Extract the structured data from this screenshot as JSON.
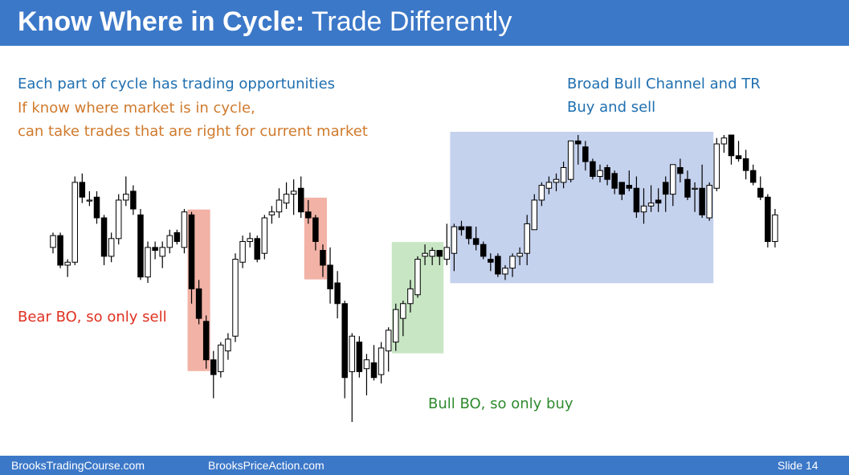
{
  "title": {
    "bold": "Know Where in Cycle:",
    "rest": "Trade Differently"
  },
  "intro": {
    "line1": "Each part of cycle has trading opportunities",
    "line2": "If know where market is in cycle,",
    "line3": "can take trades that are right for current market"
  },
  "annotations": {
    "channel_line1": "Broad Bull Channel and TR",
    "channel_line2": "Buy and sell",
    "bear": "Bear BO, so only sell",
    "bull": "Bull BO, so only buy"
  },
  "footer": {
    "left": "BrooksTradingCourse.com",
    "center": "BrooksPriceAction.com",
    "slide": "Slide  14"
  },
  "colors": {
    "header": "#3c78c8",
    "intro_blue": "#1f6fb0",
    "intro_orange": "#d07a2c",
    "bear_red": "#e03020",
    "bull_green": "#2e8a2e",
    "bear_zone": "#f2b2a6",
    "bull_zone": "#c8e6c4",
    "channel_zone": "#c5d2ee"
  },
  "chart_data": {
    "type": "candlestick",
    "title": "",
    "xlabel": "",
    "ylabel": "",
    "ylim": [
      0,
      100
    ],
    "zones": [
      {
        "label": "bear",
        "from": 19,
        "to": 21
      },
      {
        "label": "bear",
        "from": 35,
        "to": 37
      },
      {
        "label": "bull",
        "from": 47,
        "to": 53
      },
      {
        "label": "channel",
        "from": 55,
        "to": 90
      }
    ],
    "candles": [
      {
        "o": 62,
        "h": 67,
        "l": 60,
        "c": 66
      },
      {
        "o": 66,
        "h": 67,
        "l": 55,
        "c": 56
      },
      {
        "o": 56,
        "h": 58,
        "l": 52,
        "c": 57
      },
      {
        "o": 57,
        "h": 86,
        "l": 56,
        "c": 84
      },
      {
        "o": 84,
        "h": 87,
        "l": 77,
        "c": 79
      },
      {
        "o": 78,
        "h": 81,
        "l": 76,
        "c": 78
      },
      {
        "o": 79,
        "h": 81,
        "l": 70,
        "c": 72
      },
      {
        "o": 72,
        "h": 73,
        "l": 56,
        "c": 59
      },
      {
        "o": 59,
        "h": 67,
        "l": 57,
        "c": 65
      },
      {
        "o": 65,
        "h": 80,
        "l": 63,
        "c": 78
      },
      {
        "o": 78,
        "h": 86,
        "l": 76,
        "c": 80
      },
      {
        "o": 81,
        "h": 83,
        "l": 73,
        "c": 75
      },
      {
        "o": 73,
        "h": 75,
        "l": 51,
        "c": 52
      },
      {
        "o": 52,
        "h": 64,
        "l": 50,
        "c": 62
      },
      {
        "o": 62,
        "h": 64,
        "l": 58,
        "c": 61
      },
      {
        "o": 59,
        "h": 64,
        "l": 55,
        "c": 62
      },
      {
        "o": 62,
        "h": 68,
        "l": 60,
        "c": 66
      },
      {
        "o": 67,
        "h": 68,
        "l": 63,
        "c": 64
      },
      {
        "o": 62,
        "h": 75,
        "l": 60,
        "c": 74
      },
      {
        "o": 73,
        "h": 74,
        "l": 43,
        "c": 48
      },
      {
        "o": 48,
        "h": 51,
        "l": 36,
        "c": 38
      },
      {
        "o": 37,
        "h": 39,
        "l": 21,
        "c": 24
      },
      {
        "o": 24,
        "h": 27,
        "l": 11,
        "c": 19
      },
      {
        "o": 20,
        "h": 30,
        "l": 18,
        "c": 29
      },
      {
        "o": 27,
        "h": 33,
        "l": 24,
        "c": 31
      },
      {
        "o": 32,
        "h": 60,
        "l": 30,
        "c": 58
      },
      {
        "o": 57,
        "h": 66,
        "l": 55,
        "c": 64
      },
      {
        "o": 64,
        "h": 67,
        "l": 62,
        "c": 65
      },
      {
        "o": 65,
        "h": 66,
        "l": 57,
        "c": 58
      },
      {
        "o": 60,
        "h": 73,
        "l": 58,
        "c": 72
      },
      {
        "o": 73,
        "h": 76,
        "l": 70,
        "c": 74
      },
      {
        "o": 74,
        "h": 82,
        "l": 72,
        "c": 78
      },
      {
        "o": 77,
        "h": 84,
        "l": 75,
        "c": 80
      },
      {
        "o": 80,
        "h": 85,
        "l": 73,
        "c": 81
      },
      {
        "o": 82,
        "h": 86,
        "l": 72,
        "c": 74
      },
      {
        "o": 74,
        "h": 78,
        "l": 70,
        "c": 72
      },
      {
        "o": 72,
        "h": 73,
        "l": 61,
        "c": 64
      },
      {
        "o": 61,
        "h": 63,
        "l": 52,
        "c": 56
      },
      {
        "o": 56,
        "h": 62,
        "l": 43,
        "c": 48
      },
      {
        "o": 50,
        "h": 54,
        "l": 38,
        "c": 43
      },
      {
        "o": 43,
        "h": 44,
        "l": 11,
        "c": 18
      },
      {
        "o": 20,
        "h": 33,
        "l": 3,
        "c": 32
      },
      {
        "o": 30,
        "h": 32,
        "l": 18,
        "c": 20
      },
      {
        "o": 21,
        "h": 26,
        "l": 12,
        "c": 24
      },
      {
        "o": 23,
        "h": 29,
        "l": 17,
        "c": 18
      },
      {
        "o": 19,
        "h": 30,
        "l": 16,
        "c": 28
      },
      {
        "o": 27,
        "h": 35,
        "l": 20,
        "c": 34
      },
      {
        "o": 30,
        "h": 43,
        "l": 27,
        "c": 41
      },
      {
        "o": 38,
        "h": 44,
        "l": 32,
        "c": 43
      },
      {
        "o": 43,
        "h": 51,
        "l": 40,
        "c": 48
      },
      {
        "o": 46,
        "h": 59,
        "l": 45,
        "c": 58
      },
      {
        "o": 59,
        "h": 63,
        "l": 56,
        "c": 60
      },
      {
        "o": 59,
        "h": 62,
        "l": 56,
        "c": 61
      },
      {
        "o": 61,
        "h": 61,
        "l": 56,
        "c": 59
      },
      {
        "o": 58,
        "h": 70,
        "l": 56,
        "c": 62
      },
      {
        "o": 60,
        "h": 70,
        "l": 54,
        "c": 69
      },
      {
        "o": 69,
        "h": 71,
        "l": 66,
        "c": 68
      },
      {
        "o": 69,
        "h": 69,
        "l": 63,
        "c": 65
      },
      {
        "o": 65,
        "h": 69,
        "l": 61,
        "c": 63
      },
      {
        "o": 63,
        "h": 64,
        "l": 58,
        "c": 59
      },
      {
        "o": 58,
        "h": 60,
        "l": 54,
        "c": 57
      },
      {
        "o": 59,
        "h": 60,
        "l": 52,
        "c": 53
      },
      {
        "o": 53,
        "h": 56,
        "l": 51,
        "c": 55
      },
      {
        "o": 55,
        "h": 60,
        "l": 52,
        "c": 59
      },
      {
        "o": 59,
        "h": 62,
        "l": 56,
        "c": 60
      },
      {
        "o": 60,
        "h": 73,
        "l": 56,
        "c": 70
      },
      {
        "o": 68,
        "h": 80,
        "l": 68,
        "c": 78
      },
      {
        "o": 78,
        "h": 84,
        "l": 76,
        "c": 83
      },
      {
        "o": 82,
        "h": 86,
        "l": 80,
        "c": 84
      },
      {
        "o": 84,
        "h": 87,
        "l": 81,
        "c": 85
      },
      {
        "o": 84,
        "h": 91,
        "l": 82,
        "c": 89
      },
      {
        "o": 85,
        "h": 98,
        "l": 84,
        "c": 98
      },
      {
        "o": 98,
        "h": 100,
        "l": 90,
        "c": 97
      },
      {
        "o": 96,
        "h": 98,
        "l": 88,
        "c": 91
      },
      {
        "o": 91,
        "h": 92,
        "l": 85,
        "c": 86
      },
      {
        "o": 86,
        "h": 90,
        "l": 84,
        "c": 88
      },
      {
        "o": 89,
        "h": 90,
        "l": 83,
        "c": 85
      },
      {
        "o": 87,
        "h": 88,
        "l": 80,
        "c": 82
      },
      {
        "o": 84,
        "h": 84,
        "l": 78,
        "c": 80
      },
      {
        "o": 83,
        "h": 88,
        "l": 81,
        "c": 82
      },
      {
        "o": 82,
        "h": 86,
        "l": 72,
        "c": 74
      },
      {
        "o": 74,
        "h": 82,
        "l": 70,
        "c": 76
      },
      {
        "o": 76,
        "h": 83,
        "l": 74,
        "c": 77
      },
      {
        "o": 78,
        "h": 82,
        "l": 74,
        "c": 77
      },
      {
        "o": 84,
        "h": 86,
        "l": 74,
        "c": 80
      },
      {
        "o": 80,
        "h": 90,
        "l": 76,
        "c": 90
      },
      {
        "o": 89,
        "h": 92,
        "l": 84,
        "c": 87
      },
      {
        "o": 85,
        "h": 88,
        "l": 78,
        "c": 79
      },
      {
        "o": 82,
        "h": 84,
        "l": 74,
        "c": 82
      },
      {
        "o": 82,
        "h": 90,
        "l": 72,
        "c": 73
      },
      {
        "o": 72,
        "h": 84,
        "l": 71,
        "c": 83
      },
      {
        "o": 82,
        "h": 99,
        "l": 81,
        "c": 97
      },
      {
        "o": 97,
        "h": 100,
        "l": 94,
        "c": 99
      },
      {
        "o": 100,
        "h": 100,
        "l": 90,
        "c": 93
      },
      {
        "o": 93,
        "h": 98,
        "l": 91,
        "c": 92
      },
      {
        "o": 92,
        "h": 95,
        "l": 85,
        "c": 88
      },
      {
        "o": 88,
        "h": 90,
        "l": 83,
        "c": 84
      },
      {
        "o": 82,
        "h": 86,
        "l": 78,
        "c": 79
      },
      {
        "o": 79,
        "h": 80,
        "l": 62,
        "c": 64
      },
      {
        "o": 64,
        "h": 75,
        "l": 62,
        "c": 73
      }
    ]
  }
}
